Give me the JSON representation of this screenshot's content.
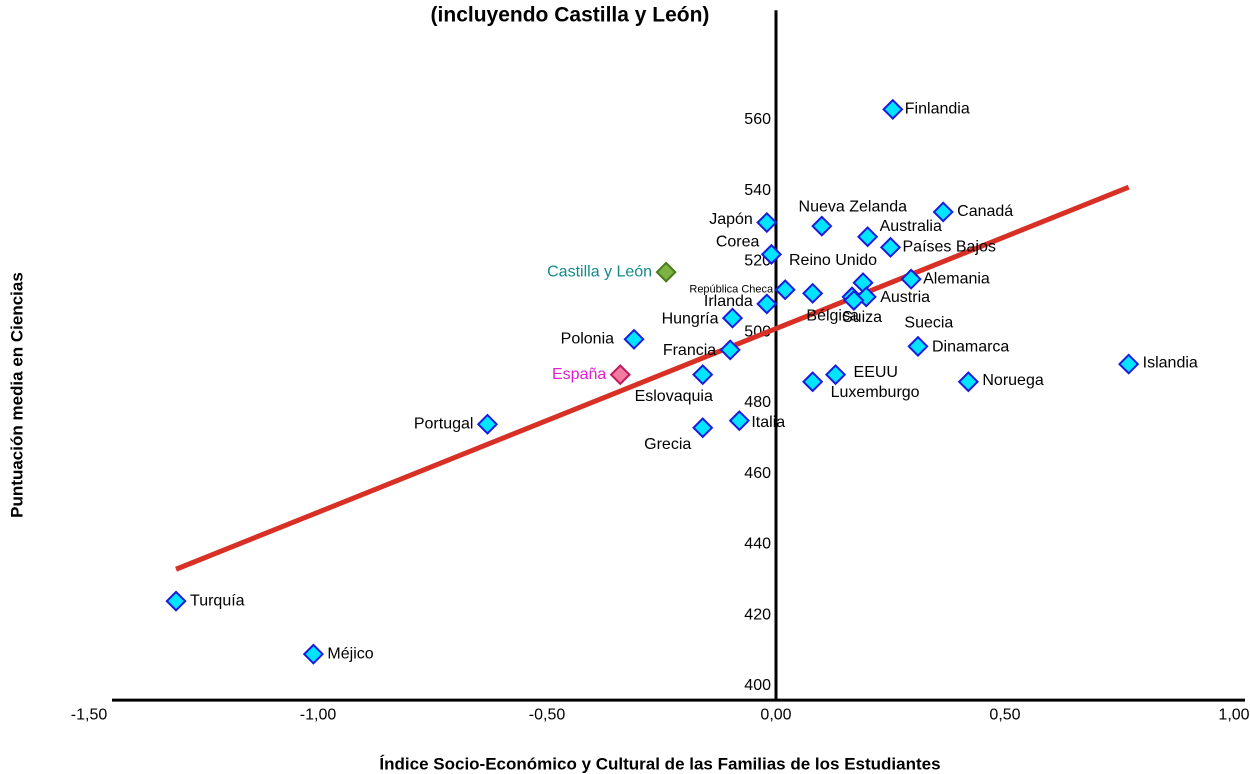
{
  "chart_data": {
    "type": "scatter",
    "title": "(incluyendo Castilla y León)",
    "x_label": "Índice Socio-Económico y Cultural de las Familias de los Estudiantes",
    "y_label": "Puntuación media en Ciencias",
    "xlim": [
      -1.5,
      1.0
    ],
    "ylim": [
      396,
      591
    ],
    "xticks": [
      {
        "value": -1.5,
        "label": "-1,50"
      },
      {
        "value": -1.0,
        "label": "-1,00"
      },
      {
        "value": -0.5,
        "label": "-0,50"
      },
      {
        "value": 0,
        "label": "0,00"
      },
      {
        "value": 0.5,
        "label": "0,50"
      },
      {
        "value": 1.0,
        "label": "1,00"
      }
    ],
    "yticks": [
      400,
      420,
      440,
      460,
      480,
      500,
      520,
      540,
      560
    ],
    "point_color": "#00e5ff",
    "point_edge": "#1a1adf",
    "points": [
      {
        "label": "Finlandia",
        "x": 0.255,
        "y": 563
      },
      {
        "label": "Canadá",
        "x": 0.365,
        "y": 534
      },
      {
        "label": "Nueva Zelanda",
        "x": 0.1,
        "y": 530
      },
      {
        "label": "Japón",
        "x": -0.02,
        "y": 531
      },
      {
        "label": "Australia",
        "x": 0.2,
        "y": 527
      },
      {
        "label": "Países Bajos",
        "x": 0.25,
        "y": 524
      },
      {
        "label": "Corea",
        "x": -0.01,
        "y": 522
      },
      {
        "label": "Castilla y León",
        "x": -0.24,
        "y": 517,
        "color": "#7cb342",
        "edge": "#4a7a1c",
        "label_color": "#138a8a"
      },
      {
        "label": "Alemania",
        "x": 0.295,
        "y": 515
      },
      {
        "label": "Reino Unido",
        "x": 0.19,
        "y": 514
      },
      {
        "label": "República Checa",
        "x": 0.02,
        "y": 512
      },
      {
        "label": "Bélgica",
        "x": 0.08,
        "y": 511
      },
      {
        "label": "Suiza",
        "x": 0.166,
        "y": 510
      },
      {
        "label": "Austria",
        "x": 0.197,
        "y": 510
      },
      {
        "label": "Suecia",
        "x": 0.17,
        "y": 509
      },
      {
        "label": "Irlanda",
        "x": -0.02,
        "y": 508
      },
      {
        "label": "Hungría",
        "x": -0.095,
        "y": 504
      },
      {
        "label": "Polonia",
        "x": -0.31,
        "y": 498
      },
      {
        "label": "Francia",
        "x": -0.1,
        "y": 495
      },
      {
        "label": "Dinamarca",
        "x": 0.31,
        "y": 496
      },
      {
        "label": "Islandia",
        "x": 0.77,
        "y": 491
      },
      {
        "label": "España",
        "x": -0.34,
        "y": 488,
        "color": "#f07aa0",
        "edge": "#c2185b",
        "label_color": "#e020d0"
      },
      {
        "label": "Eslovaquia",
        "x": -0.16,
        "y": 488
      },
      {
        "label": "EEUU",
        "x": 0.13,
        "y": 488
      },
      {
        "label": "Luxemburgo",
        "x": 0.08,
        "y": 486
      },
      {
        "label": "Noruega",
        "x": 0.42,
        "y": 486
      },
      {
        "label": "Italia",
        "x": -0.08,
        "y": 475
      },
      {
        "label": "Grecia",
        "x": -0.16,
        "y": 473
      },
      {
        "label": "Portugal",
        "x": -0.63,
        "y": 474
      },
      {
        "label": "Turquía",
        "x": -1.31,
        "y": 424
      },
      {
        "label": "Méjico",
        "x": -1.01,
        "y": 409
      }
    ],
    "trendline": {
      "x": [
        -1.31,
        0.77
      ],
      "y": [
        433,
        541
      ],
      "color": "#d93025"
    }
  }
}
